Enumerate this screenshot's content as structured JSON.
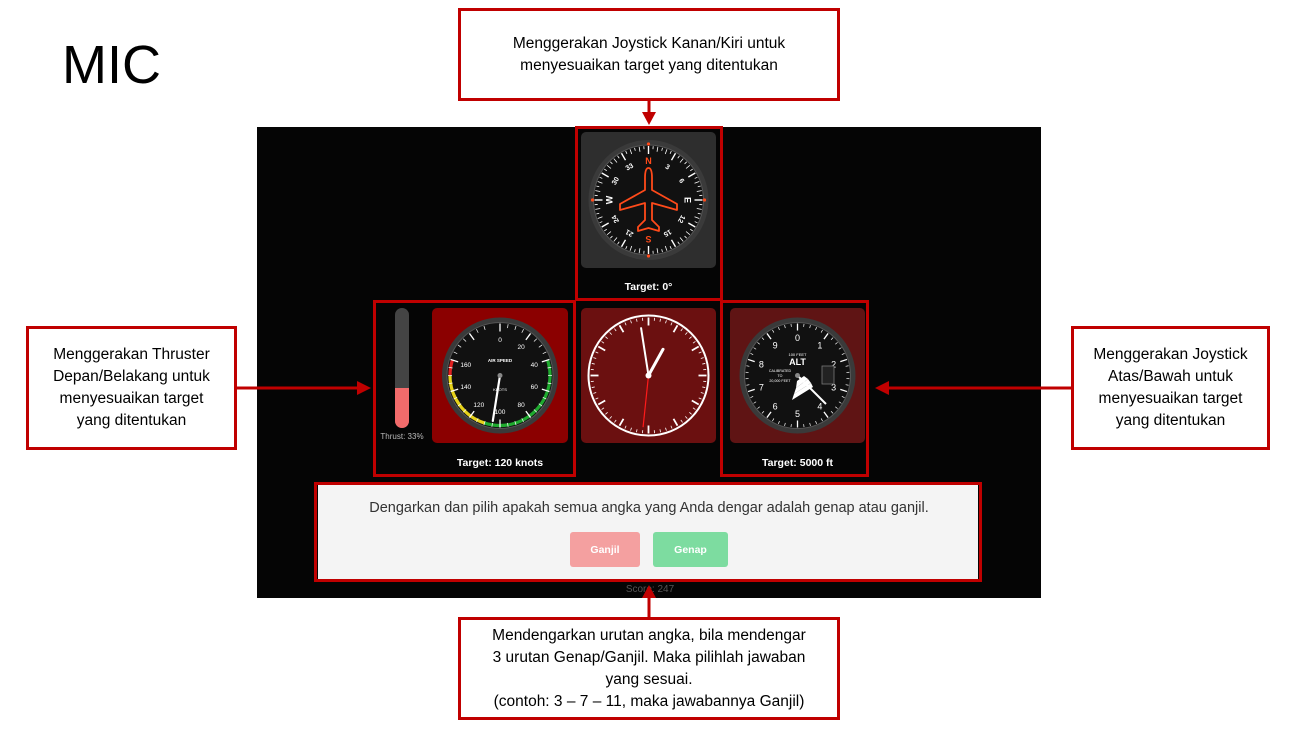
{
  "page_title": "MIC",
  "callouts": {
    "top": "Menggerakan Joystick Kanan/Kiri untuk menyesuaikan target yang ditentukan",
    "left": "Menggerakan Thruster Depan/Belakang untuk menyesuaikan target yang ditentukan",
    "right": "Menggerakan Joystick Atas/Bawah untuk menyesuaikan target yang ditentukan",
    "bottom_lines": [
      "Mendengarkan urutan angka, bila mendengar",
      "3 urutan Genap/Ganjil. Maka pilihlah jawaban",
      "yang sesuai.",
      "(contoh: 3 – 7 – 11, maka jawabannya Ganjil)"
    ]
  },
  "heading": {
    "target_label": "Target: 0°",
    "labels": [
      "N",
      "3",
      "6",
      "E",
      "12",
      "15",
      "S",
      "21",
      "24",
      "W",
      "30",
      "33"
    ]
  },
  "airspeed": {
    "target_label": "Target: 120 knots",
    "title": "AIR SPEED",
    "unit": "KNOTS",
    "labels": [
      "0",
      "20",
      "40",
      "60",
      "80",
      "100",
      "120",
      "140",
      "160"
    ],
    "value_knots": 105
  },
  "thrust": {
    "label": "Thrust: 33%",
    "value_percent": 33
  },
  "clock": {
    "hours": 12,
    "minutes": 58,
    "seconds": 31
  },
  "altimeter": {
    "target_label": "Target: 5000 ft",
    "title": "ALT",
    "subtitle": "100 FEET",
    "labels": [
      "0",
      "1",
      "2",
      "3",
      "4",
      "5",
      "6",
      "7",
      "8",
      "9"
    ],
    "calibrated_lines": [
      "CALIBRATED",
      "TO",
      "20,000 FEET"
    ]
  },
  "task": {
    "prompt": "Dengarkan dan pilih apakah semua angka yang Anda dengar adalah genap atau ganjil.",
    "ganjil_label": "Ganjil",
    "genap_label": "Genap"
  },
  "score_text": "Score: 247",
  "colors": {
    "annotation_red": "#c00000",
    "airspeed_panel": "#8b0000",
    "clock_panel": "#6b1010",
    "altimeter_panel": "#5f1414",
    "heading_panel": "#2e2e2e",
    "ganjil_button": "#f4a0a0",
    "genap_button": "#7ddca0"
  }
}
